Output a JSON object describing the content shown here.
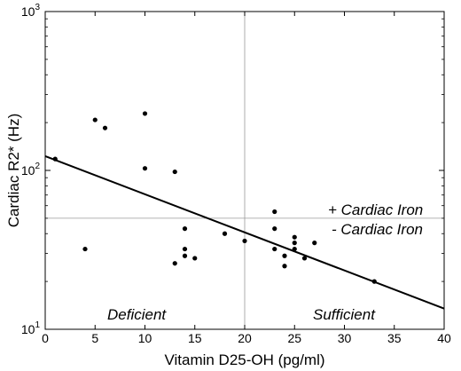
{
  "chart_data": {
    "type": "scatter",
    "xlabel": "Vitamin D25-OH (pg/ml)",
    "ylabel": "Cardiac R2* (Hz)",
    "xlim": [
      0,
      40
    ],
    "ylim": [
      10,
      1000
    ],
    "yscale": "log",
    "x_ticks": [
      0,
      5,
      10,
      15,
      20,
      25,
      30,
      35,
      40
    ],
    "y_ticks": [
      {
        "value": 10,
        "base": "10",
        "exp": "1"
      },
      {
        "value": 100,
        "base": "10",
        "exp": "2"
      },
      {
        "value": 1000,
        "base": "10",
        "exp": "3"
      }
    ],
    "grid": false,
    "points": [
      {
        "x": 1,
        "y": 118
      },
      {
        "x": 4,
        "y": 32
      },
      {
        "x": 5,
        "y": 208
      },
      {
        "x": 6,
        "y": 185
      },
      {
        "x": 10,
        "y": 228
      },
      {
        "x": 10,
        "y": 103
      },
      {
        "x": 13,
        "y": 98
      },
      {
        "x": 13,
        "y": 26
      },
      {
        "x": 14,
        "y": 43
      },
      {
        "x": 14,
        "y": 32
      },
      {
        "x": 14,
        "y": 29
      },
      {
        "x": 15,
        "y": 28
      },
      {
        "x": 18,
        "y": 40
      },
      {
        "x": 20,
        "y": 36
      },
      {
        "x": 23,
        "y": 55
      },
      {
        "x": 23,
        "y": 43
      },
      {
        "x": 23,
        "y": 32
      },
      {
        "x": 24,
        "y": 25
      },
      {
        "x": 24,
        "y": 29
      },
      {
        "x": 25,
        "y": 38
      },
      {
        "x": 25,
        "y": 35
      },
      {
        "x": 25,
        "y": 32
      },
      {
        "x": 26,
        "y": 28
      },
      {
        "x": 27,
        "y": 35
      },
      {
        "x": 33,
        "y": 20
      }
    ],
    "fit_line": {
      "x": [
        0,
        40
      ],
      "y": [
        123,
        13.5
      ]
    },
    "threshold_x": 20,
    "threshold_y": 50,
    "annotations": {
      "above": "+ Cardiac Iron",
      "below": "- Cardiac Iron",
      "left_region": "Deficient",
      "right_region": "Sufficient"
    }
  }
}
